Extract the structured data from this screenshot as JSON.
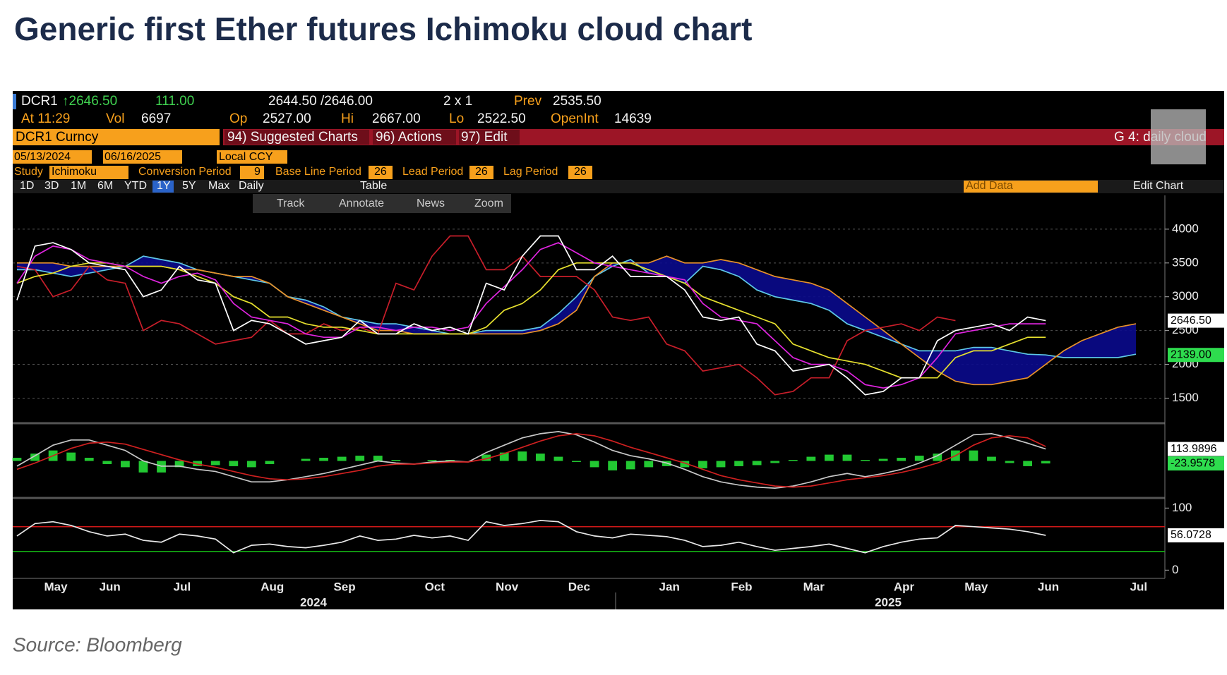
{
  "title": "Generic first Ether futures Ichimoku cloud chart",
  "source": "Source: Bloomberg",
  "terminal": {
    "ticker": "DCR1",
    "last": "↑2646.50",
    "change": "111.00",
    "bid_ask": "2644.50 /2646.00",
    "size": "2 x 1",
    "prev_label": "Prev",
    "prev": "2535.50",
    "time": "At 11:29",
    "vol_label": "Vol",
    "vol": "6697",
    "open_label": "Op",
    "open": "2527.00",
    "high_label": "Hi",
    "high": "2667.00",
    "low_label": "Lo",
    "low": "2522.50",
    "oi_label": "OpenInt",
    "oi": "14639",
    "security": "DCR1 Curncy",
    "menu": [
      "94) Suggested Charts",
      "96) Actions",
      "97) Edit"
    ],
    "tab": "G 4: daily cloud",
    "start_date": "05/13/2024",
    "end_date": "06/16/2025",
    "currency": "Local CCY",
    "study_label": "Study",
    "study": "Ichimoku",
    "params": [
      {
        "label": "Conversion Period",
        "value": "9"
      },
      {
        "label": "Base Line Period",
        "value": "26"
      },
      {
        "label": "Lead Period",
        "value": "26"
      },
      {
        "label": "Lag Period",
        "value": "26"
      }
    ],
    "periods": [
      "1D",
      "3D",
      "1M",
      "6M",
      "YTD",
      "1Y",
      "5Y",
      "Max"
    ],
    "frequency": "Daily",
    "table": "Table",
    "add_data": "Add Data",
    "edit_chart": "Edit Chart",
    "tools": [
      "Track",
      "Annotate",
      "News",
      "Zoom"
    ]
  },
  "chart_data": [
    {
      "type": "line",
      "categories": [
        "May",
        null,
        null,
        "Jun",
        null,
        null,
        null,
        "Jul",
        null,
        null,
        null,
        null,
        "Aug",
        null,
        null,
        null,
        "Sep",
        null,
        null,
        null,
        null,
        "Oct",
        null,
        null,
        null,
        "Nov",
        null,
        null,
        null,
        "Dec",
        null,
        null,
        null,
        null,
        "Jan",
        null,
        null,
        null,
        "Feb",
        null,
        null,
        null,
        "Mar",
        null,
        null,
        null,
        null,
        "Apr",
        null,
        null,
        null,
        "May",
        null,
        null,
        null,
        "Jun",
        null,
        null,
        null,
        null,
        "Jul",
        null,
        null
      ],
      "x_group_labels": [
        "2024",
        "2025"
      ],
      "ylim": [
        1150,
        4500
      ],
      "yticks": [
        1500,
        2000,
        2500,
        3000,
        3500,
        4000
      ],
      "grid": true,
      "fill_between": [
        0,
        1
      ],
      "fill_color": "#0a0a8c",
      "series": [
        {
          "color": "#5ec8e6",
          "values": [
            3400,
            3400,
            3350,
            3300,
            3350,
            3400,
            3450,
            3600,
            3550,
            3500,
            3400,
            3350,
            3300,
            3250,
            3200,
            3000,
            2950,
            2850,
            2700,
            2650,
            2600,
            2600,
            2550,
            2500,
            2450,
            2450,
            2500,
            2500,
            2500,
            2550,
            2750,
            3000,
            3300,
            3450,
            3550,
            3350,
            3300,
            3200,
            3450,
            3400,
            3300,
            3100,
            3000,
            2950,
            2900,
            2800,
            2600,
            2500,
            2400,
            2300,
            2200,
            2200,
            2200,
            2250,
            2250,
            2200,
            2150,
            2139,
            2100,
            2100,
            2100,
            2100,
            2150
          ],
          "value_labels": [
            null,
            null,
            null,
            null,
            null,
            null,
            null,
            null,
            null,
            null,
            null,
            null,
            null,
            null,
            null,
            null,
            null,
            null,
            null,
            null,
            null,
            null,
            null,
            null,
            null,
            null,
            null,
            null,
            null,
            null,
            null,
            null,
            null,
            null,
            null,
            null,
            null,
            null,
            null,
            null,
            null,
            null,
            null,
            null,
            null,
            null,
            null,
            null,
            null,
            null,
            null,
            null,
            null,
            null,
            null,
            null,
            null,
            "2139.00",
            null,
            null,
            null,
            null,
            null
          ],
          "label_color": "#2edc4e"
        },
        {
          "color": "#e8922a",
          "values": [
            3500,
            3500,
            3500,
            3450,
            3450,
            3450,
            3450,
            3450,
            3450,
            3400,
            3400,
            3350,
            3300,
            3300,
            3200,
            3000,
            2900,
            2800,
            2700,
            2600,
            2500,
            2500,
            2450,
            2450,
            2450,
            2450,
            2450,
            2450,
            2450,
            2500,
            2600,
            2800,
            3300,
            3500,
            3500,
            3500,
            3600,
            3500,
            3500,
            3550,
            3500,
            3400,
            3300,
            3250,
            3200,
            3100,
            2900,
            2700,
            2500,
            2300,
            2100,
            1900,
            1750,
            1700,
            1700,
            1750,
            1800,
            2000,
            2200,
            2350,
            2450,
            2550,
            2600
          ]
        },
        {
          "color": "#c81e2a",
          "values": [
            3450,
            3400,
            3000,
            3100,
            3450,
            3250,
            3200,
            2500,
            2650,
            2600,
            2450,
            2300,
            2350,
            2400,
            2650,
            2450,
            2450,
            2600,
            2500,
            2550,
            2450,
            3200,
            3100,
            3600,
            3900,
            3900,
            3400,
            3400,
            3600,
            3300,
            3300,
            3300,
            3100,
            2700,
            2650,
            2700,
            2300,
            2200,
            1900,
            1950,
            2000,
            1800,
            1550,
            1600,
            1800,
            1800,
            2350,
            2500,
            2550,
            2600,
            2500,
            2700,
            2646.5,
            null,
            null,
            null,
            null,
            null,
            null,
            null,
            null,
            null,
            null
          ]
        },
        {
          "color": "#e6e02e",
          "values": [
            3200,
            3300,
            3350,
            3450,
            3500,
            3500,
            3450,
            3450,
            3450,
            3400,
            3300,
            3200,
            3000,
            2900,
            2700,
            2700,
            2600,
            2550,
            2550,
            2500,
            2450,
            2450,
            2450,
            2450,
            2450,
            2450,
            2550,
            2800,
            2900,
            3100,
            3400,
            3500,
            3500,
            3500,
            3500,
            3400,
            3300,
            3200,
            3000,
            2900,
            2800,
            2700,
            2600,
            2300,
            2200,
            2100,
            2050,
            2000,
            1900,
            1800,
            1800,
            1800,
            2100,
            2200,
            2200,
            2300,
            2400,
            2400,
            null,
            null,
            null,
            null,
            null
          ]
        },
        {
          "color": "#e024e0",
          "values": [
            3200,
            3600,
            3750,
            3700,
            3550,
            3500,
            3450,
            3300,
            3200,
            3300,
            3350,
            3250,
            2900,
            2700,
            2650,
            2600,
            2450,
            2400,
            2400,
            2550,
            2550,
            2500,
            2550,
            2550,
            2500,
            2550,
            2900,
            3150,
            3400,
            3700,
            3800,
            3650,
            3500,
            3450,
            3400,
            3350,
            3300,
            3250,
            2900,
            2700,
            2650,
            2600,
            2350,
            2100,
            2000,
            2000,
            1900,
            1700,
            1650,
            1700,
            1800,
            2100,
            2450,
            2500,
            2550,
            2600,
            2600,
            2600,
            null,
            null,
            null,
            null,
            null
          ]
        },
        {
          "color": "#ffffff",
          "values": [
            2950,
            3750,
            3800,
            3700,
            3500,
            3450,
            3400,
            3000,
            3100,
            3450,
            3250,
            3200,
            2500,
            2650,
            2600,
            2450,
            2300,
            2350,
            2400,
            2650,
            2450,
            2450,
            2600,
            2500,
            2550,
            2450,
            3200,
            3100,
            3600,
            3900,
            3900,
            3400,
            3400,
            3600,
            3300,
            3300,
            3300,
            3100,
            2700,
            2650,
            2700,
            2300,
            2200,
            1900,
            1950,
            2000,
            1800,
            1550,
            1600,
            1800,
            1800,
            2350,
            2500,
            2550,
            2600,
            2500,
            2700,
            2646.5,
            null,
            null,
            null,
            null,
            null
          ],
          "value_labels": [
            null,
            null,
            null,
            null,
            null,
            null,
            null,
            null,
            null,
            null,
            null,
            null,
            null,
            null,
            null,
            null,
            null,
            null,
            null,
            null,
            null,
            null,
            null,
            null,
            null,
            null,
            null,
            null,
            null,
            null,
            null,
            null,
            null,
            null,
            null,
            null,
            null,
            null,
            null,
            null,
            null,
            null,
            null,
            null,
            null,
            null,
            null,
            null,
            null,
            null,
            null,
            null,
            null,
            null,
            null,
            null,
            null,
            "2646.50",
            null,
            null,
            null,
            null,
            null
          ],
          "label_color": "#ffffff"
        }
      ]
    },
    {
      "type": "line",
      "ylim": [
        -340,
        340
      ],
      "series": [
        {
          "type": "bar",
          "color": "#22c832",
          "values": [
            30,
            70,
            100,
            80,
            30,
            -30,
            -60,
            -110,
            -110,
            -60,
            -50,
            -40,
            -50,
            -60,
            -30,
            0,
            20,
            30,
            40,
            50,
            50,
            10,
            0,
            10,
            10,
            0,
            60,
            80,
            90,
            70,
            40,
            -10,
            -60,
            -90,
            -80,
            -60,
            -50,
            -60,
            -70,
            -60,
            -50,
            -40,
            -20,
            10,
            40,
            60,
            60,
            10,
            20,
            30,
            50,
            70,
            100,
            100,
            40,
            -20,
            -50,
            -23.9578,
            null,
            null,
            null,
            null,
            null
          ],
          "label": true,
          "label_color": "#2edc4e"
        },
        {
          "color": "#c8c8c8",
          "values": [
            -50,
            50,
            150,
            200,
            200,
            150,
            100,
            0,
            -50,
            -50,
            -80,
            -100,
            -150,
            -200,
            -200,
            -180,
            -150,
            -120,
            -80,
            -40,
            0,
            -20,
            -30,
            -10,
            0,
            -10,
            80,
            150,
            220,
            260,
            280,
            250,
            180,
            100,
            50,
            20,
            -20,
            -80,
            -150,
            -200,
            -230,
            -250,
            -260,
            -240,
            -200,
            -150,
            -120,
            -150,
            -120,
            -80,
            -20,
            50,
            150,
            250,
            260,
            220,
            170,
            113.9896,
            null,
            null,
            null,
            null,
            null
          ],
          "label": true,
          "label_color": "#ffffff"
        },
        {
          "color": "#d02020",
          "values": [
            -80,
            -20,
            50,
            120,
            170,
            180,
            160,
            110,
            60,
            10,
            -30,
            -60,
            -100,
            -140,
            -170,
            -180,
            -170,
            -150,
            -120,
            -90,
            -50,
            -30,
            -30,
            -20,
            -10,
            -10,
            20,
            70,
            130,
            190,
            240,
            260,
            240,
            190,
            130,
            80,
            30,
            -20,
            -80,
            -140,
            -180,
            -210,
            -240,
            -250,
            -240,
            -210,
            -180,
            -160,
            -140,
            -110,
            -70,
            -20,
            50,
            150,
            220,
            240,
            220,
            137.9474,
            null,
            null,
            null,
            null,
            null
          ]
        }
      ]
    },
    {
      "type": "line",
      "ylim": [
        -11,
        114
      ],
      "yticks": [
        0,
        100
      ],
      "ref_lines": [
        {
          "value": 70,
          "color": "#d01818"
        },
        {
          "value": 30,
          "color": "#16c016"
        }
      ],
      "series": [
        {
          "color": "#e8e8e8",
          "values": [
            55,
            75,
            78,
            72,
            62,
            55,
            58,
            48,
            45,
            58,
            55,
            50,
            28,
            40,
            42,
            38,
            36,
            40,
            45,
            55,
            48,
            50,
            56,
            52,
            55,
            48,
            78,
            72,
            75,
            80,
            78,
            62,
            55,
            52,
            58,
            56,
            54,
            48,
            38,
            40,
            45,
            38,
            32,
            35,
            38,
            42,
            35,
            28,
            38,
            45,
            50,
            52,
            72,
            70,
            68,
            66,
            62,
            56.0728,
            null,
            null,
            null,
            null,
            null
          ],
          "label": true,
          "label_color": "#ffffff"
        }
      ]
    }
  ]
}
